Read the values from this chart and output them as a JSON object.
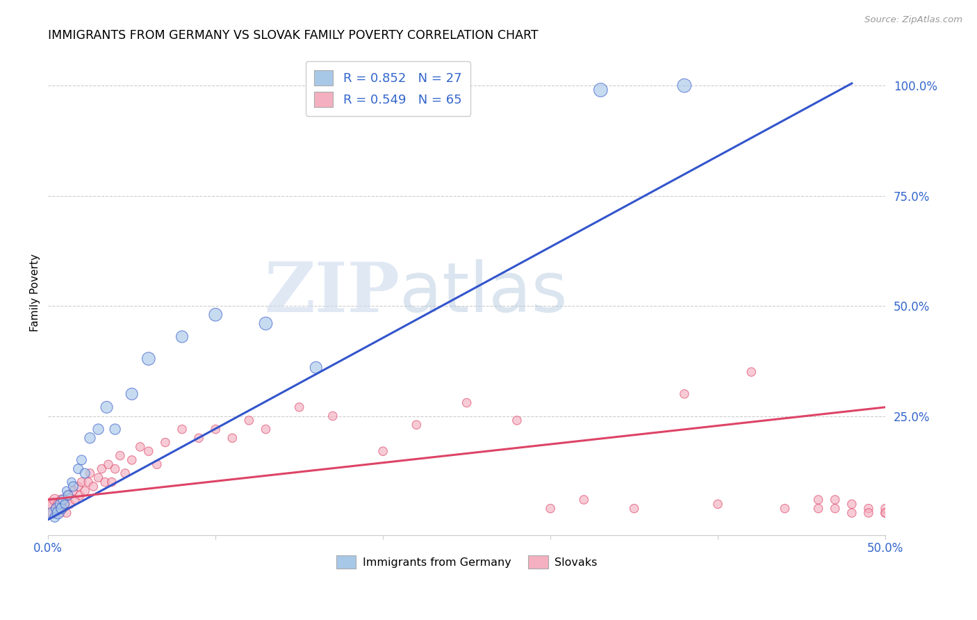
{
  "title": "IMMIGRANTS FROM GERMANY VS SLOVAK FAMILY POVERTY CORRELATION CHART",
  "source": "Source: ZipAtlas.com",
  "ylabel": "Family Poverty",
  "xlim": [
    0.0,
    0.5
  ],
  "ylim": [
    -0.02,
    1.08
  ],
  "legend_labels": [
    "Immigrants from Germany",
    "Slovaks"
  ],
  "legend_R_blue": "R = 0.852",
  "legend_N_blue": "N = 27",
  "legend_R_pink": "R = 0.549",
  "legend_N_pink": "N = 65",
  "blue_color": "#a8c8e8",
  "pink_color": "#f4b0c0",
  "blue_line_color": "#3355cc",
  "pink_line_color": "#dd4466",
  "grid_color": "#cccccc",
  "blue_scatter_x": [
    0.002,
    0.004,
    0.005,
    0.006,
    0.007,
    0.008,
    0.009,
    0.01,
    0.011,
    0.012,
    0.014,
    0.015,
    0.018,
    0.02,
    0.022,
    0.025,
    0.03,
    0.035,
    0.04,
    0.05,
    0.06,
    0.08,
    0.1,
    0.13,
    0.16,
    0.33,
    0.38
  ],
  "blue_scatter_y": [
    0.03,
    0.02,
    0.04,
    0.03,
    0.05,
    0.04,
    0.06,
    0.05,
    0.08,
    0.07,
    0.1,
    0.09,
    0.13,
    0.15,
    0.12,
    0.2,
    0.22,
    0.27,
    0.22,
    0.3,
    0.38,
    0.43,
    0.48,
    0.46,
    0.36,
    0.99,
    1.0
  ],
  "blue_scatter_sizes": [
    120,
    100,
    120,
    150,
    100,
    120,
    100,
    80,
    80,
    100,
    80,
    100,
    100,
    100,
    100,
    120,
    120,
    150,
    120,
    150,
    180,
    150,
    180,
    180,
    150,
    200,
    200
  ],
  "pink_scatter_x": [
    0.001,
    0.002,
    0.003,
    0.004,
    0.005,
    0.006,
    0.007,
    0.008,
    0.009,
    0.01,
    0.011,
    0.012,
    0.013,
    0.015,
    0.016,
    0.018,
    0.019,
    0.02,
    0.022,
    0.024,
    0.025,
    0.027,
    0.03,
    0.032,
    0.034,
    0.036,
    0.038,
    0.04,
    0.043,
    0.046,
    0.05,
    0.055,
    0.06,
    0.065,
    0.07,
    0.08,
    0.09,
    0.1,
    0.11,
    0.12,
    0.13,
    0.15,
    0.17,
    0.2,
    0.22,
    0.25,
    0.28,
    0.3,
    0.32,
    0.35,
    0.38,
    0.4,
    0.42,
    0.44,
    0.46,
    0.47,
    0.48,
    0.49,
    0.5,
    0.49,
    0.5,
    0.5,
    0.46,
    0.47,
    0.48
  ],
  "pink_scatter_y": [
    0.04,
    0.05,
    0.03,
    0.06,
    0.04,
    0.05,
    0.03,
    0.06,
    0.04,
    0.05,
    0.03,
    0.07,
    0.05,
    0.08,
    0.06,
    0.09,
    0.07,
    0.1,
    0.08,
    0.1,
    0.12,
    0.09,
    0.11,
    0.13,
    0.1,
    0.14,
    0.1,
    0.13,
    0.16,
    0.12,
    0.15,
    0.18,
    0.17,
    0.14,
    0.19,
    0.22,
    0.2,
    0.22,
    0.2,
    0.24,
    0.22,
    0.27,
    0.25,
    0.17,
    0.23,
    0.28,
    0.24,
    0.04,
    0.06,
    0.04,
    0.3,
    0.05,
    0.35,
    0.04,
    0.04,
    0.04,
    0.03,
    0.04,
    0.03,
    0.03,
    0.04,
    0.03,
    0.06,
    0.06,
    0.05
  ],
  "pink_scatter_sizes": [
    220,
    180,
    120,
    120,
    100,
    100,
    80,
    100,
    80,
    80,
    80,
    80,
    80,
    80,
    80,
    80,
    80,
    80,
    80,
    80,
    80,
    80,
    80,
    80,
    80,
    80,
    80,
    80,
    80,
    80,
    80,
    80,
    80,
    80,
    80,
    80,
    80,
    80,
    80,
    80,
    80,
    80,
    80,
    80,
    80,
    80,
    80,
    80,
    80,
    80,
    80,
    80,
    80,
    80,
    80,
    80,
    80,
    80,
    80,
    80,
    80,
    80,
    80,
    80,
    80
  ],
  "blue_line_x": [
    0.0,
    0.48
  ],
  "blue_line_y": [
    0.015,
    1.005
  ],
  "pink_line_x": [
    0.0,
    0.5
  ],
  "pink_line_y": [
    0.06,
    0.27
  ]
}
